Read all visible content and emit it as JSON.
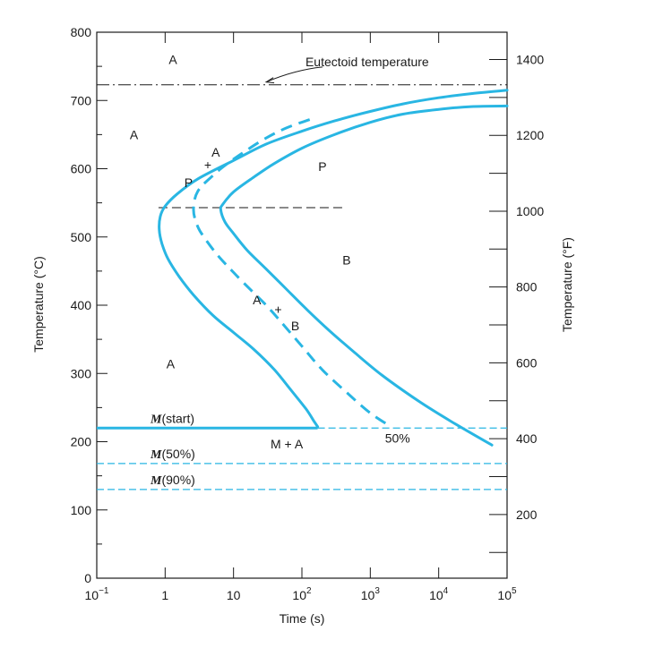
{
  "chart_data": {
    "type": "line",
    "title": "",
    "xlabel": "Time (s)",
    "ylabel": "Temperature (°C)",
    "ylabel_right": "Temperature (°F)",
    "x_scale": "log",
    "xlim": [
      0.1,
      100000
    ],
    "ylim": [
      0,
      800
    ],
    "x_ticks": [
      {
        "value": 0.1,
        "base": "10",
        "exp": "−1"
      },
      {
        "value": 1,
        "base": "1",
        "exp": ""
      },
      {
        "value": 10,
        "base": "10",
        "exp": ""
      },
      {
        "value": 100,
        "base": "10",
        "exp": "2"
      },
      {
        "value": 1000,
        "base": "10",
        "exp": "3"
      },
      {
        "value": 10000,
        "base": "10",
        "exp": "4"
      },
      {
        "value": 100000,
        "base": "10",
        "exp": "5"
      }
    ],
    "y_ticks": [
      0,
      100,
      200,
      300,
      400,
      500,
      600,
      700,
      800
    ],
    "y_right_ticks": [
      200,
      400,
      600,
      800,
      1000,
      1200,
      1400
    ],
    "y_right_minor_ticks": [
      100,
      300,
      500,
      700,
      900,
      1100,
      1300
    ],
    "colors": {
      "curve": "#29b6e3",
      "axis": "#1a1a1a",
      "reference": "#1a1a1a"
    },
    "series": [
      {
        "name": "",
        "style": "solid",
        "points": [
          [
            100000,
            715
          ],
          [
            30000,
            710
          ],
          [
            10000,
            704
          ],
          [
            3000,
            695
          ],
          [
            1000,
            684
          ],
          [
            300,
            670
          ],
          [
            100,
            655
          ],
          [
            30,
            636
          ],
          [
            10,
            612
          ],
          [
            3,
            585
          ],
          [
            1.5,
            563
          ],
          [
            1,
            545
          ],
          [
            0.85,
            530
          ],
          [
            0.82,
            510
          ],
          [
            0.9,
            490
          ],
          [
            1.1,
            468
          ],
          [
            1.6,
            442
          ],
          [
            2.6,
            415
          ],
          [
            5,
            385
          ],
          [
            10,
            360
          ],
          [
            20,
            335
          ],
          [
            40,
            305
          ],
          [
            70,
            275
          ],
          [
            115,
            248
          ],
          [
            150,
            230
          ],
          [
            170,
            222
          ]
        ]
      },
      {
        "name": "",
        "style": "dashed",
        "points": [
          [
            130,
            672
          ],
          [
            60,
            660
          ],
          [
            30,
            645
          ],
          [
            15,
            626
          ],
          [
            8,
            607
          ],
          [
            5,
            590
          ],
          [
            3,
            567
          ],
          [
            2.6,
            540
          ],
          [
            3,
            515
          ],
          [
            4,
            495
          ],
          [
            6,
            472
          ],
          [
            10,
            448
          ],
          [
            18,
            422
          ],
          [
            30,
            400
          ],
          [
            50,
            375
          ],
          [
            100,
            340
          ],
          [
            200,
            305
          ],
          [
            500,
            268
          ],
          [
            1000,
            242
          ],
          [
            2000,
            222
          ]
        ]
      },
      {
        "name": "",
        "style": "solid",
        "points": [
          [
            100000,
            692
          ],
          [
            30000,
            691
          ],
          [
            10000,
            687
          ],
          [
            3000,
            680
          ],
          [
            1000,
            668
          ],
          [
            300,
            650
          ],
          [
            100,
            630
          ],
          [
            40,
            608
          ],
          [
            20,
            588
          ],
          [
            10,
            566
          ],
          [
            7,
            548
          ],
          [
            6.5,
            540
          ],
          [
            7.5,
            522
          ],
          [
            10,
            505
          ],
          [
            16,
            480
          ],
          [
            30,
            453
          ],
          [
            60,
            423
          ],
          [
            120,
            393
          ],
          [
            250,
            363
          ],
          [
            600,
            330
          ],
          [
            1500,
            297
          ],
          [
            5000,
            260
          ],
          [
            15000,
            230
          ],
          [
            60000,
            195
          ]
        ]
      }
    ],
    "reference_lines": [
      {
        "label": "Eutectoid temperature",
        "temperature": 723,
        "style": "dash-dot"
      },
      {
        "label": "",
        "temperature": 543,
        "x_start": 0.8,
        "x_end": 400,
        "style": "dashed"
      }
    ],
    "martensite_lines": [
      {
        "label_main": "M",
        "label_suffix": "(start)",
        "temperature": 220
      },
      {
        "label_main": "M",
        "label_suffix": "(50%)",
        "temperature": 168
      },
      {
        "label_main": "M",
        "label_suffix": "(90%)",
        "temperature": 130
      }
    ],
    "markers": [
      {
        "symbol": "+",
        "x": 4.2,
        "y": 606
      },
      {
        "symbol": "+",
        "x": 45,
        "y": 394
      }
    ],
    "annotations": [
      {
        "text": "A",
        "x": 1.3,
        "y": 760
      },
      {
        "text": "A",
        "x": 0.35,
        "y": 650
      },
      {
        "text": "A",
        "x": 5.5,
        "y": 624
      },
      {
        "text": "P",
        "x": 200,
        "y": 603
      },
      {
        "text": "P",
        "x": 2.2,
        "y": 580
      },
      {
        "text": "B",
        "x": 450,
        "y": 466
      },
      {
        "text": "A",
        "x": 22,
        "y": 408
      },
      {
        "text": "B",
        "x": 80,
        "y": 370
      },
      {
        "text": "A",
        "x": 1.2,
        "y": 314
      },
      {
        "text": "M + A",
        "x": 60,
        "y": 197
      },
      {
        "text": "50%",
        "x": 2500,
        "y": 205
      }
    ]
  }
}
